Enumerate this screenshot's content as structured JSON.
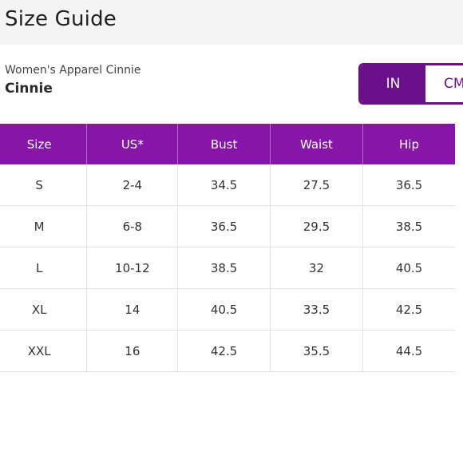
{
  "header": {
    "title": "Size Guide"
  },
  "product": {
    "subtitle": "Women's Apparel Cinnie",
    "name": "Cinnie"
  },
  "unit_toggle": {
    "options": [
      "IN",
      "CM"
    ],
    "selected": "IN"
  },
  "colors": {
    "accent": "#6c0f8a",
    "table_header": "#8716a8"
  },
  "table": {
    "headers": [
      "Size",
      "US*",
      "Bust",
      "Waist",
      "Hip"
    ],
    "rows": [
      [
        "S",
        "2-4",
        "34.5",
        "27.5",
        "36.5"
      ],
      [
        "M",
        "6-8",
        "36.5",
        "29.5",
        "38.5"
      ],
      [
        "L",
        "10-12",
        "38.5",
        "32",
        "40.5"
      ],
      [
        "XL",
        "14",
        "40.5",
        "33.5",
        "42.5"
      ],
      [
        "XXL",
        "16",
        "42.5",
        "35.5",
        "44.5"
      ]
    ]
  }
}
